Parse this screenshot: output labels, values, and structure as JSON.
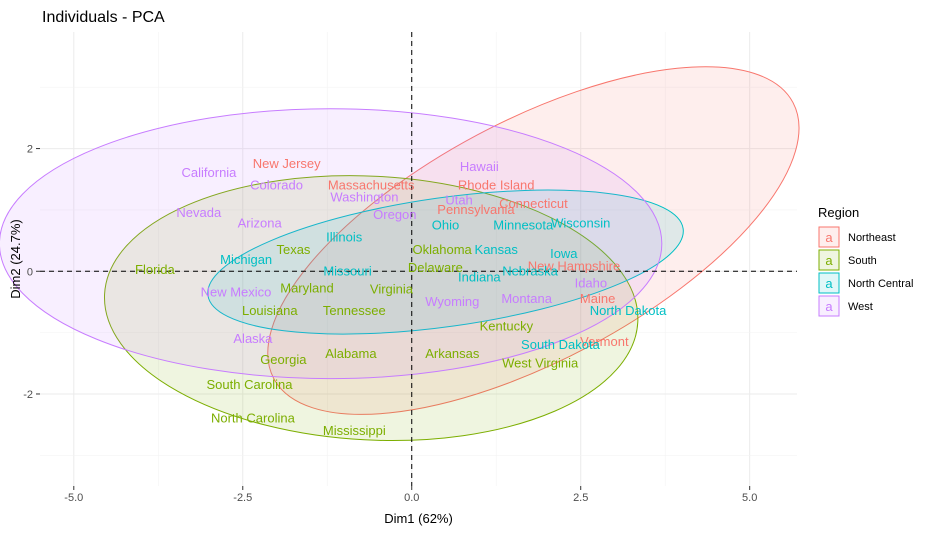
{
  "chart_data": {
    "type": "scatter",
    "title": "Individuals - PCA",
    "xlabel": "Dim1 (62%)",
    "ylabel": "Dim2 (24.7%)",
    "xlim": [
      -5.5,
      5.7
    ],
    "ylim": [
      -3.5,
      3.9
    ],
    "x_ticks": [
      -5.0,
      -2.5,
      0.0,
      2.5,
      5.0
    ],
    "x_tick_labels": [
      "-5.0",
      "-2.5",
      "0.0",
      "2.5",
      "5.0"
    ],
    "y_ticks": [
      -2,
      0,
      2
    ],
    "y_tick_labels": [
      "-2",
      "0",
      "2"
    ],
    "grid": true,
    "reference_lines": {
      "x": 0,
      "y": 0,
      "style": "dashed"
    },
    "legend": {
      "title": "Region",
      "position": "right",
      "key_glyph": "a",
      "entries": [
        {
          "name": "Northeast",
          "color": "#F8766D"
        },
        {
          "name": "South",
          "color": "#7CAE00"
        },
        {
          "name": "North Central",
          "color": "#00BFC4"
        },
        {
          "name": "West",
          "color": "#C77CFF"
        }
      ]
    },
    "series": [
      {
        "name": "Northeast",
        "color": "#F8766D",
        "ellipse": {
          "cx": 1.8,
          "cy": 0.5,
          "rx": 4.35,
          "ry": 1.95,
          "angle_deg": -28
        },
        "points": [
          {
            "label": "New Jersey",
            "x": -1.85,
            "y": 1.75
          },
          {
            "label": "Massachusetts",
            "x": -0.6,
            "y": 1.4
          },
          {
            "label": "Rhode Island",
            "x": 1.25,
            "y": 1.4
          },
          {
            "label": "Pennsylvania",
            "x": 0.95,
            "y": 1.0
          },
          {
            "label": "Connecticut",
            "x": 1.8,
            "y": 1.1
          },
          {
            "label": "New Hampshire",
            "x": 2.4,
            "y": 0.08
          },
          {
            "label": "Maine",
            "x": 2.75,
            "y": -0.45
          },
          {
            "label": "Vermont",
            "x": 2.85,
            "y": -1.15
          }
        ]
      },
      {
        "name": "South",
        "color": "#7CAE00",
        "ellipse": {
          "cx": -0.6,
          "cy": -0.6,
          "rx": 3.95,
          "ry": 2.15,
          "angle_deg": 3
        },
        "points": [
          {
            "label": "Florida",
            "x": -3.8,
            "y": 0.02
          },
          {
            "label": "Texas",
            "x": -1.75,
            "y": 0.35
          },
          {
            "label": "Delaware",
            "x": 0.35,
            "y": 0.05
          },
          {
            "label": "Oklahoma",
            "x": 0.45,
            "y": 0.35
          },
          {
            "label": "Maryland",
            "x": -1.55,
            "y": -0.28
          },
          {
            "label": "Virginia",
            "x": -0.3,
            "y": -0.3
          },
          {
            "label": "Louisiana",
            "x": -2.1,
            "y": -0.65
          },
          {
            "label": "Tennessee",
            "x": -0.85,
            "y": -0.65
          },
          {
            "label": "Kentucky",
            "x": 1.4,
            "y": -0.9
          },
          {
            "label": "Alabama",
            "x": -0.9,
            "y": -1.35
          },
          {
            "label": "Arkansas",
            "x": 0.6,
            "y": -1.35
          },
          {
            "label": "Georgia",
            "x": -1.9,
            "y": -1.45
          },
          {
            "label": "West Virginia",
            "x": 1.9,
            "y": -1.5
          },
          {
            "label": "South Carolina",
            "x": -2.4,
            "y": -1.85
          },
          {
            "label": "North Carolina",
            "x": -2.35,
            "y": -2.4
          },
          {
            "label": "Mississippi",
            "x": -0.85,
            "y": -2.6
          }
        ]
      },
      {
        "name": "North Central",
        "color": "#00BFC4",
        "ellipse": {
          "cx": 0.5,
          "cy": 0.15,
          "rx": 3.55,
          "ry": 1.05,
          "angle_deg": -8
        },
        "points": [
          {
            "label": "Michigan",
            "x": -2.45,
            "y": 0.18
          },
          {
            "label": "Illinois",
            "x": -1.0,
            "y": 0.55
          },
          {
            "label": "Missouri",
            "x": -0.95,
            "y": 0.0
          },
          {
            "label": "Ohio",
            "x": 0.5,
            "y": 0.75
          },
          {
            "label": "Minnesota",
            "x": 1.65,
            "y": 0.75
          },
          {
            "label": "Wisconsin",
            "x": 2.5,
            "y": 0.78
          },
          {
            "label": "Kansas",
            "x": 1.25,
            "y": 0.35
          },
          {
            "label": "Indiana",
            "x": 1.0,
            "y": -0.1
          },
          {
            "label": "Iowa",
            "x": 2.25,
            "y": 0.28
          },
          {
            "label": "Nebraska",
            "x": 1.75,
            "y": 0.0
          },
          {
            "label": "North Dakota",
            "x": 3.2,
            "y": -0.65
          },
          {
            "label": "South Dakota",
            "x": 2.2,
            "y": -1.2
          }
        ]
      },
      {
        "name": "West",
        "color": "#C77CFF",
        "ellipse": {
          "cx": -1.2,
          "cy": 0.45,
          "rx": 4.9,
          "ry": 2.2,
          "angle_deg": 0
        },
        "points": [
          {
            "label": "California",
            "x": -3.0,
            "y": 1.6
          },
          {
            "label": "Colorado",
            "x": -2.0,
            "y": 1.4
          },
          {
            "label": "Hawaii",
            "x": 1.0,
            "y": 1.7
          },
          {
            "label": "Washington",
            "x": -0.7,
            "y": 1.2
          },
          {
            "label": "Utah",
            "x": 0.7,
            "y": 1.15
          },
          {
            "label": "Nevada",
            "x": -3.15,
            "y": 0.95
          },
          {
            "label": "Oregon",
            "x": -0.25,
            "y": 0.92
          },
          {
            "label": "Arizona",
            "x": -2.25,
            "y": 0.78
          },
          {
            "label": "Idaho",
            "x": 2.65,
            "y": -0.2
          },
          {
            "label": "New Mexico",
            "x": -2.6,
            "y": -0.35
          },
          {
            "label": "Montana",
            "x": 1.7,
            "y": -0.45
          },
          {
            "label": "Wyoming",
            "x": 0.6,
            "y": -0.5
          },
          {
            "label": "Alaska",
            "x": -2.35,
            "y": -1.1
          }
        ]
      }
    ]
  }
}
